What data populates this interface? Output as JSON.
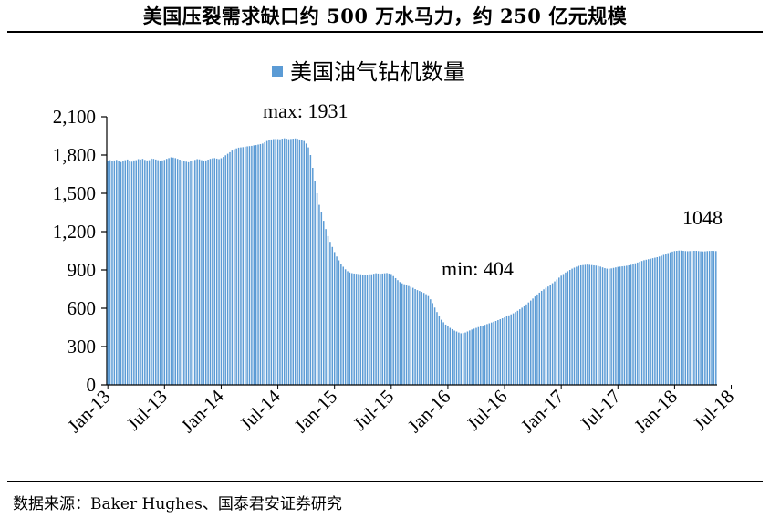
{
  "title": "美国压裂需求缺口约 500 万水马力，约 250 亿元规模",
  "source": "数据来源：Baker Hughes、国泰君安证券研究",
  "colors": {
    "bar": "#5B9BD5",
    "axis": "#000000"
  },
  "chart_data": {
    "type": "bar",
    "legend": "美国油气钻机数量",
    "legend_position": "top",
    "ylim": [
      0,
      2100
    ],
    "y_ticks": [
      "0",
      "300",
      "600",
      "900",
      "1,200",
      "1,500",
      "1,800",
      "2,100"
    ],
    "x_tick_labels": [
      "Jan-13",
      "Jul-13",
      "Jan-14",
      "Jul-14",
      "Jan-15",
      "Jul-15",
      "Jan-16",
      "Jul-16",
      "Jan-17",
      "Jul-17",
      "Jan-18",
      "Jul-18"
    ],
    "grid": false,
    "annotations": {
      "max": "max: 1931",
      "min": "min: 404",
      "last": "1048"
    },
    "series": [
      {
        "values": [
          1756,
          1760,
          1752,
          1758,
          1762,
          1750,
          1745,
          1752,
          1760,
          1765,
          1755,
          1748,
          1758,
          1760,
          1768,
          1765,
          1770,
          1762,
          1758,
          1760,
          1772,
          1770,
          1765,
          1760,
          1756,
          1758,
          1762,
          1770,
          1776,
          1782,
          1780,
          1776,
          1770,
          1764,
          1758,
          1752,
          1748,
          1744,
          1750,
          1756,
          1762,
          1768,
          1766,
          1760,
          1755,
          1758,
          1764,
          1770,
          1774,
          1776,
          1772,
          1768,
          1775,
          1785,
          1798,
          1810,
          1822,
          1835,
          1846,
          1852,
          1858,
          1860,
          1862,
          1866,
          1868,
          1870,
          1872,
          1876,
          1878,
          1882,
          1886,
          1890,
          1900,
          1910,
          1918,
          1922,
          1925,
          1926,
          1925,
          1923,
          1928,
          1931,
          1928,
          1924,
          1926,
          1928,
          1930,
          1927,
          1922,
          1918,
          1910,
          1890,
          1860,
          1800,
          1700,
          1600,
          1500,
          1410,
          1350,
          1285,
          1220,
          1165,
          1120,
          1080,
          1040,
          1005,
          975,
          950,
          925,
          905,
          890,
          880,
          875,
          872,
          870,
          868,
          866,
          862,
          860,
          862,
          866,
          866,
          870,
          874,
          872,
          870,
          872,
          874,
          876,
          872,
          868,
          852,
          836,
          820,
          805,
          795,
          788,
          780,
          774,
          768,
          760,
          750,
          742,
          735,
          728,
          720,
          710,
          695,
          670,
          640,
          605,
          570,
          540,
          510,
          490,
          472,
          458,
          446,
          436,
          425,
          418,
          410,
          404,
          406,
          410,
          418,
          426,
          433,
          440,
          446,
          452,
          458,
          464,
          470,
          476,
          482,
          488,
          494,
          500,
          507,
          514,
          521,
          528,
          536,
          544,
          552,
          560,
          570,
          580,
          592,
          604,
          617,
          630,
          645,
          660,
          676,
          692,
          708,
          722,
          736,
          748,
          760,
          770,
          782,
          796,
          810,
          825,
          840,
          855,
          868,
          880,
          890,
          900,
          910,
          918,
          925,
          932,
          936,
          938,
          940,
          942,
          940,
          938,
          936,
          934,
          930,
          926,
          920,
          914,
          910,
          910,
          912,
          916,
          920,
          924,
          926,
          928,
          930,
          933,
          936,
          940,
          946,
          952,
          958,
          964,
          970,
          976,
          980,
          984,
          988,
          992,
          996,
          1000,
          1005,
          1011,
          1018,
          1025,
          1032,
          1038,
          1044,
          1048,
          1050,
          1052,
          1052,
          1050,
          1048,
          1047,
          1048,
          1049,
          1050,
          1050,
          1048,
          1046,
          1045,
          1046,
          1048,
          1049,
          1050,
          1049,
          1048
        ]
      }
    ]
  }
}
